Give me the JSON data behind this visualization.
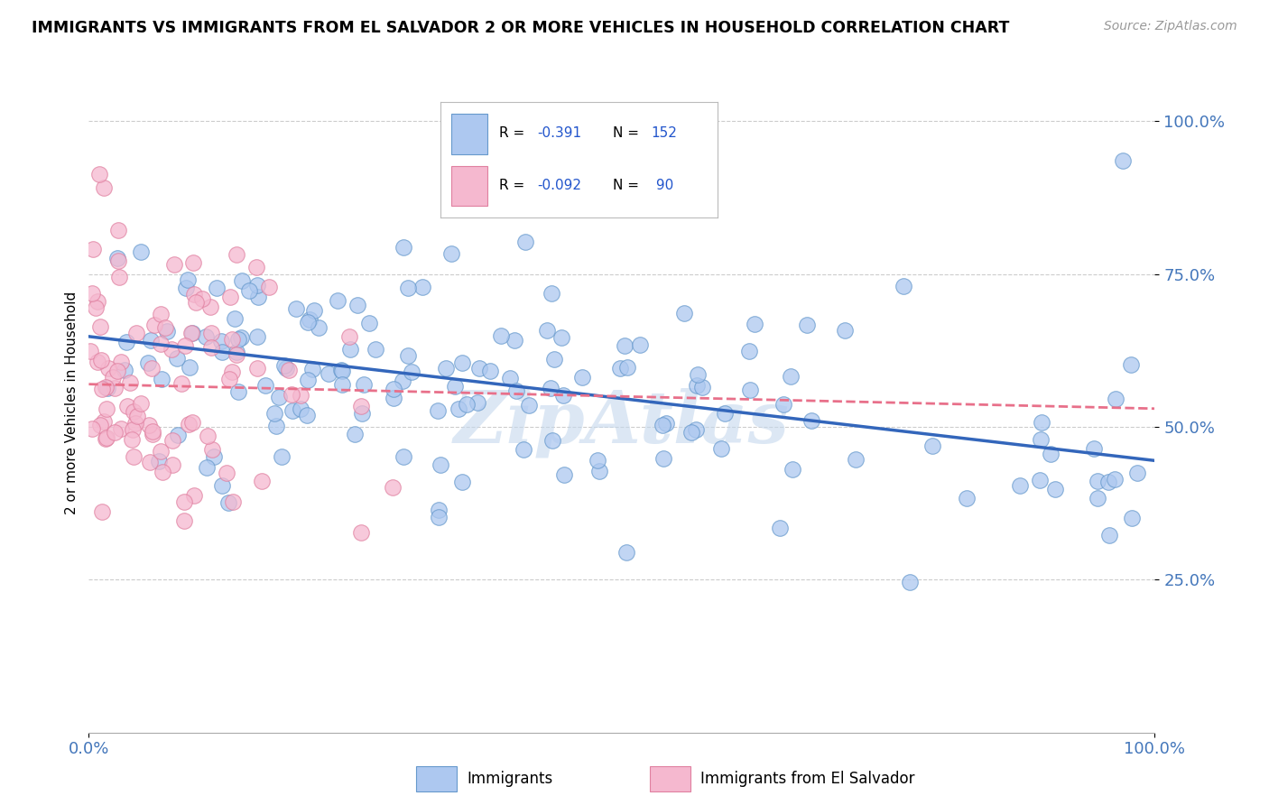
{
  "title": "IMMIGRANTS VS IMMIGRANTS FROM EL SALVADOR 2 OR MORE VEHICLES IN HOUSEHOLD CORRELATION CHART",
  "source": "Source: ZipAtlas.com",
  "ylabel": "2 or more Vehicles in Household",
  "xlim": [
    0.0,
    1.0
  ],
  "ylim": [
    0.0,
    1.08
  ],
  "yticks": [
    0.25,
    0.5,
    0.75,
    1.0
  ],
  "ytick_labels": [
    "25.0%",
    "50.0%",
    "75.0%",
    "100.0%"
  ],
  "xtick_labels": [
    "0.0%",
    "100.0%"
  ],
  "xtick_pos": [
    0.0,
    1.0
  ],
  "legend1_R": "-0.391",
  "legend1_N": "152",
  "legend2_R": "-0.092",
  "legend2_N": "90",
  "blue_fill": "#adc8f0",
  "blue_edge": "#6699cc",
  "pink_fill": "#f5b8cf",
  "pink_edge": "#e080a0",
  "blue_line_color": "#3366bb",
  "pink_line_color": "#e8708a",
  "R_blue": -0.391,
  "R_pink": -0.092,
  "N_blue": 152,
  "N_pink": 90,
  "watermark": "ZipAtlas",
  "blue_line_start_y": 0.648,
  "blue_line_end_y": 0.445,
  "pink_line_start_y": 0.57,
  "pink_line_end_y": 0.53
}
